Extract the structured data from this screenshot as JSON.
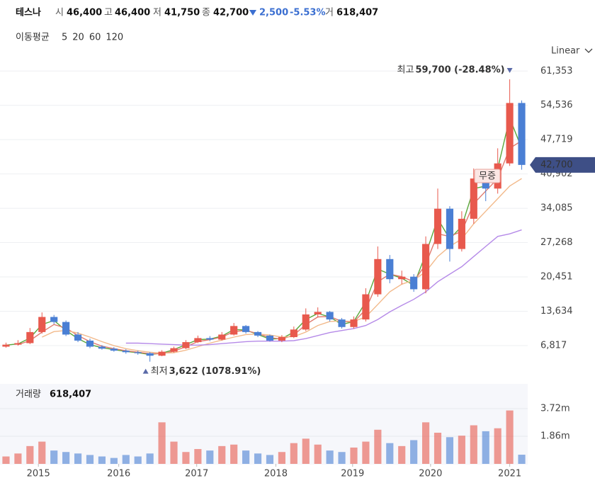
{
  "header": {
    "name": "테스나",
    "open_label": "시",
    "open": "46,400",
    "high_label": "고",
    "high": "46,400",
    "low_label": "저",
    "low": "41,750",
    "close_label": "종",
    "close": "42,700",
    "change": "2,500",
    "change_pct": "-5.53%",
    "volume_label": "거",
    "volume": "618,407",
    "scale": "Linear"
  },
  "chart_data": {
    "type": "candlestick",
    "ma_label": "이동평균",
    "up_color": "#e8594d",
    "down_color": "#4a7fd4",
    "xlim": [
      -0.5,
      43.5
    ],
    "xticks": [
      {
        "value": 2.7,
        "label": "2015"
      },
      {
        "value": 9.4,
        "label": "2016"
      },
      {
        "value": 15.9,
        "label": "2017"
      },
      {
        "value": 22.5,
        "label": "2018"
      },
      {
        "value": 28.9,
        "label": "2019"
      },
      {
        "value": 35.4,
        "label": "2020"
      },
      {
        "value": 42.0,
        "label": "2021"
      }
    ],
    "ylim": [
      900,
      63500
    ],
    "yticks": [
      {
        "value": 6817,
        "label": "6,817"
      },
      {
        "value": 13634,
        "label": "13,634"
      },
      {
        "value": 20451,
        "label": "20,451"
      },
      {
        "value": 27268,
        "label": "27,268"
      },
      {
        "value": 34085,
        "label": "34,085"
      },
      {
        "value": 40902,
        "label": "40,902"
      },
      {
        "value": 47719,
        "label": "47,719"
      },
      {
        "value": 54536,
        "label": "54,536"
      },
      {
        "value": 61353,
        "label": "61,353"
      }
    ],
    "grid": true,
    "open": [
      6600,
      7000,
      7300,
      9500,
      12500,
      11500,
      9000,
      7800,
      6600,
      6200,
      5800,
      5500,
      5300,
      4800,
      5600,
      6300,
      7500,
      8300,
      8000,
      9000,
      10700,
      9500,
      8800,
      7800,
      8500,
      10000,
      13000,
      13500,
      12000,
      10500,
      12000,
      17000,
      24000,
      20000,
      20500,
      18000,
      27000,
      34000,
      26000,
      32000,
      40000,
      38000,
      43000,
      55000
    ],
    "high": [
      7400,
      7900,
      10300,
      13400,
      12900,
      11800,
      9500,
      8200,
      6900,
      6500,
      6100,
      5800,
      5500,
      5900,
      6600,
      7900,
      8800,
      8700,
      9500,
      11300,
      10900,
      9700,
      9000,
      8900,
      10600,
      14200,
      14400,
      13700,
      12300,
      12600,
      18200,
      26500,
      24800,
      21700,
      21000,
      28500,
      38000,
      34500,
      33500,
      42000,
      41500,
      46000,
      59700,
      55500
    ],
    "low": [
      6400,
      6800,
      7100,
      9200,
      11100,
      8700,
      7500,
      6300,
      6000,
      5600,
      5200,
      5000,
      3622,
      4700,
      5400,
      6100,
      7300,
      7700,
      7800,
      8800,
      9200,
      8500,
      7600,
      7500,
      8300,
      9700,
      12400,
      11600,
      10200,
      10200,
      11600,
      16500,
      19200,
      19000,
      17500,
      17200,
      26000,
      23500,
      25500,
      31000,
      35500,
      37000,
      42500,
      41750
    ],
    "close": [
      7000,
      7300,
      9500,
      12500,
      11500,
      9000,
      7800,
      6600,
      6200,
      5800,
      5500,
      5300,
      4800,
      5600,
      6300,
      7500,
      8300,
      8000,
      9000,
      10700,
      9500,
      8800,
      7800,
      8500,
      10000,
      13000,
      13500,
      12000,
      10500,
      12000,
      17000,
      24000,
      20000,
      20500,
      18000,
      27000,
      34000,
      26000,
      32000,
      40000,
      38000,
      43000,
      55000,
      42700
    ],
    "series": [
      {
        "name": "5",
        "color": "#5aa83c",
        "values": [
          6900,
          7150,
          8300,
          11000,
          11800,
          9800,
          8200,
          7000,
          6400,
          6000,
          5650,
          5400,
          5050,
          5300,
          6000,
          7000,
          8000,
          8100,
          8700,
          10000,
          9900,
          9000,
          8100,
          8200,
          9500,
          12000,
          13200,
          12500,
          11000,
          11600,
          15500,
          22000,
          21000,
          20200,
          18800,
          25000,
          32000,
          28000,
          30500,
          38000,
          38500,
          42000,
          52000,
          46000
        ]
      },
      {
        "name": "20",
        "color": "#e07a6e",
        "values": [
          null,
          7000,
          7800,
          9500,
          11000,
          10300,
          8800,
          7600,
          6700,
          6200,
          5800,
          5500,
          5200,
          5200,
          5700,
          6600,
          7600,
          8000,
          8500,
          9600,
          9800,
          9200,
          8400,
          8100,
          8900,
          11000,
          12500,
          12600,
          11600,
          11500,
          14000,
          19500,
          21000,
          20500,
          19500,
          23000,
          29000,
          28500,
          29500,
          35000,
          37500,
          40000,
          46000,
          47500
        ]
      },
      {
        "name": "60",
        "color": "#f2b98a",
        "values": [
          null,
          null,
          null,
          8500,
          9600,
          9800,
          9300,
          8500,
          7600,
          6800,
          6200,
          5800,
          5500,
          5300,
          5400,
          5900,
          6600,
          7300,
          7900,
          8500,
          9000,
          9100,
          8900,
          8500,
          8600,
          9500,
          10800,
          11600,
          11700,
          11600,
          12500,
          15000,
          17500,
          19000,
          19800,
          21500,
          24500,
          26500,
          28000,
          31000,
          33500,
          36000,
          38500,
          40000
        ]
      },
      {
        "name": "120",
        "color": "#b58ae8",
        "values": [
          null,
          null,
          null,
          null,
          null,
          null,
          null,
          null,
          null,
          null,
          7300,
          7300,
          7200,
          7100,
          7000,
          6900,
          6900,
          7000,
          7200,
          7400,
          7600,
          7700,
          7700,
          7700,
          7800,
          8200,
          8800,
          9400,
          9800,
          10200,
          10800,
          12000,
          13500,
          14800,
          16000,
          17500,
          19500,
          21000,
          22500,
          24500,
          26500,
          28500,
          29000,
          29800
        ]
      }
    ],
    "max_label": "최고",
    "max_text": "59,700 (-28.48%)",
    "min_label": "최저",
    "min_text": "3,622 (1078.91%)",
    "last_price": {
      "value": 42700,
      "label": "42,700"
    },
    "event_label": "무증",
    "volume": {
      "label": "거래량",
      "last": "618,407",
      "ylim": [
        0,
        5250000
      ],
      "yticks": [
        {
          "value": 1860000,
          "label": "1.86m"
        },
        {
          "value": 3720000,
          "label": "3.72m"
        }
      ],
      "values": [
        500000,
        700000,
        1200000,
        1500000,
        900000,
        800000,
        700000,
        600000,
        500000,
        400000,
        600000,
        500000,
        700000,
        2800000,
        1500000,
        800000,
        1000000,
        900000,
        1200000,
        1300000,
        900000,
        700000,
        600000,
        800000,
        1400000,
        1700000,
        1300000,
        900000,
        800000,
        1100000,
        1500000,
        2300000,
        1400000,
        1200000,
        1600000,
        2800000,
        2100000,
        1800000,
        1900000,
        2600000,
        2200000,
        2400000,
        3600000,
        618407
      ]
    }
  }
}
